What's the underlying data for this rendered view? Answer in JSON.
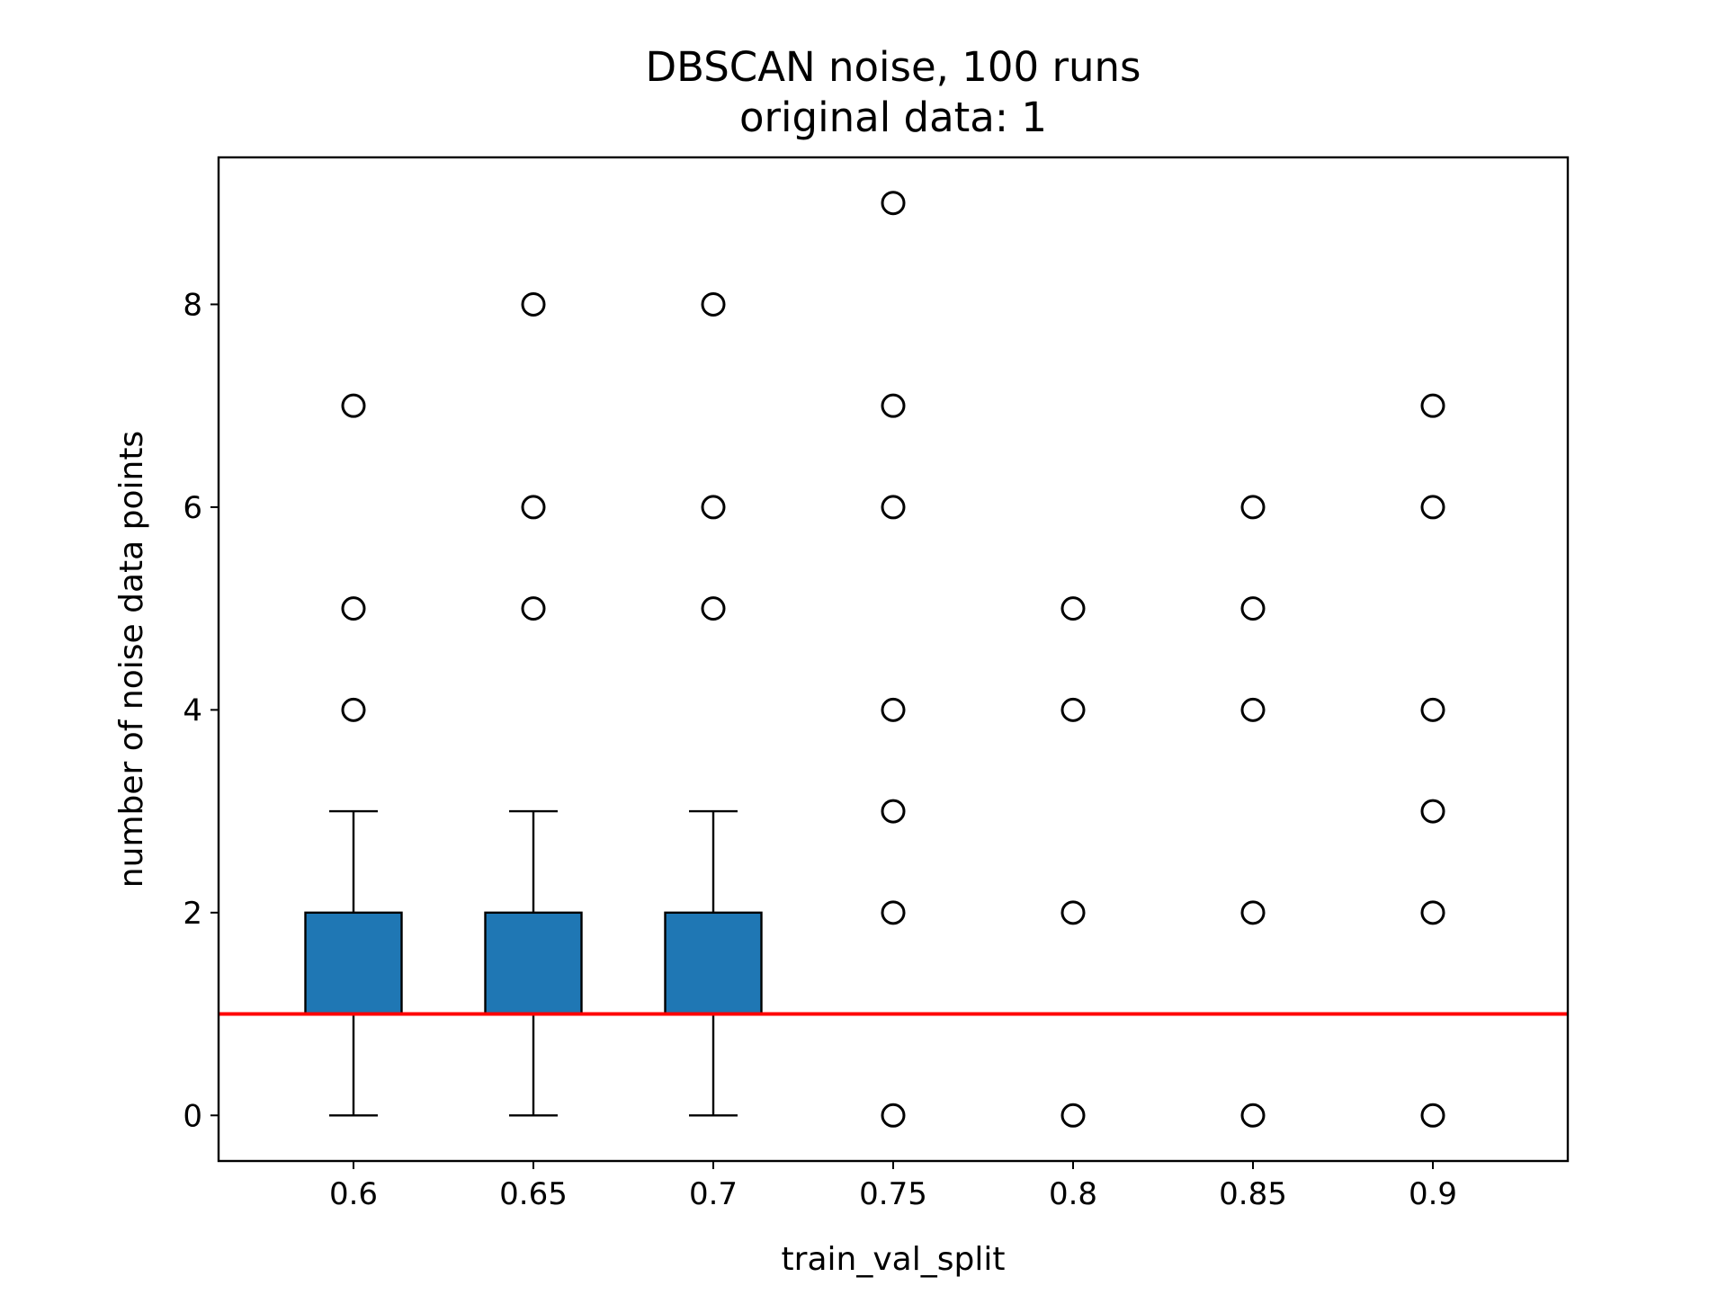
{
  "chart_data": {
    "type": "box",
    "title": "DBSCAN noise, 100 runs",
    "subtitle": "original data: 1",
    "xlabel": "train_val_split",
    "ylabel": "number of noise data points",
    "categories": [
      "0.6",
      "0.65",
      "0.7",
      "0.75",
      "0.8",
      "0.85",
      "0.9"
    ],
    "ylim": [
      -0.45,
      9.45
    ],
    "yticks": [
      0,
      2,
      4,
      6,
      8
    ],
    "grid": false,
    "boxes": [
      {
        "category": "0.6",
        "q1": 1,
        "median": 1,
        "q3": 2,
        "whisker_low": 0,
        "whisker_high": 3,
        "outliers": [
          4,
          5,
          7
        ]
      },
      {
        "category": "0.65",
        "q1": 1,
        "median": 1,
        "q3": 2,
        "whisker_low": 0,
        "whisker_high": 3,
        "outliers": [
          5,
          6,
          8
        ]
      },
      {
        "category": "0.7",
        "q1": 1,
        "median": 1,
        "q3": 2,
        "whisker_low": 0,
        "whisker_high": 3,
        "outliers": [
          5,
          6,
          8
        ]
      },
      {
        "category": "0.75",
        "q1": 1,
        "median": 1,
        "q3": 1,
        "whisker_low": 1,
        "whisker_high": 1,
        "outliers": [
          0,
          2,
          3,
          4,
          6,
          7,
          9
        ]
      },
      {
        "category": "0.8",
        "q1": 1,
        "median": 1,
        "q3": 1,
        "whisker_low": 1,
        "whisker_high": 1,
        "outliers": [
          0,
          2,
          4,
          5
        ]
      },
      {
        "category": "0.85",
        "q1": 1,
        "median": 1,
        "q3": 1,
        "whisker_low": 1,
        "whisker_high": 1,
        "outliers": [
          0,
          2,
          4,
          5,
          6
        ]
      },
      {
        "category": "0.9",
        "q1": 1,
        "median": 1,
        "q3": 1,
        "whisker_low": 1,
        "whisker_high": 1,
        "outliers": [
          0,
          2,
          3,
          4,
          6,
          7
        ]
      }
    ],
    "reference_line": {
      "y": 1
    },
    "colors": {
      "box_fill": "#1f77b4",
      "median": "#ff7f0e",
      "reference_line": "#ff0000",
      "edge": "#000000"
    }
  }
}
